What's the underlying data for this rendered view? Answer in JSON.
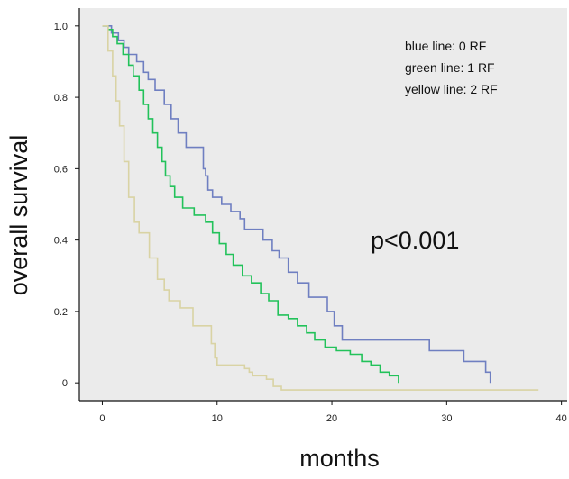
{
  "colors": {
    "plot_background": "#ebebeb",
    "axis": "#111111",
    "blue": "#6f7fc1",
    "green": "#22c25a",
    "yellow": "#d9d3a4"
  },
  "chart_data": {
    "type": "line",
    "step": true,
    "title": "",
    "xlabel": "months",
    "ylabel": "overall survival",
    "xlim": [
      -2,
      40.5
    ],
    "ylim": [
      -0.05,
      1.05
    ],
    "x_ticks": [
      0,
      10,
      20,
      30,
      40
    ],
    "y_ticks": [
      {
        "value": 0,
        "label": "0"
      },
      {
        "value": 0.2,
        "label": "0.2"
      },
      {
        "value": 0.4,
        "label": "0.4"
      },
      {
        "value": 0.6,
        "label": "0.6"
      },
      {
        "value": 0.8,
        "label": "0.8"
      },
      {
        "value": 1.0,
        "label": "1.0"
      }
    ],
    "grid": false,
    "legend_placement": "top-right",
    "legend_entries": [
      "blue line: 0 RF",
      "green line: 1 RF",
      "yellow line: 2 RF"
    ],
    "annotations": [
      "p<0.001"
    ],
    "series": [
      {
        "color": "blue",
        "x": [
          0,
          0.8,
          1.4,
          1.9,
          2.3,
          3.0,
          3.6,
          4.0,
          4.6,
          5.4,
          6.0,
          6.6,
          7.3,
          8.8,
          9.0,
          9.2,
          9.6,
          10.4,
          11.2,
          12.0,
          12.4,
          14.0,
          14.8,
          15.4,
          16.2,
          17.0,
          18.0,
          19.6,
          20.2,
          20.9,
          28.5,
          30.0,
          31.5,
          33.4,
          33.8
        ],
        "y": [
          1.0,
          0.98,
          0.96,
          0.94,
          0.92,
          0.9,
          0.87,
          0.85,
          0.82,
          0.78,
          0.74,
          0.7,
          0.66,
          0.6,
          0.58,
          0.54,
          0.52,
          0.5,
          0.48,
          0.46,
          0.43,
          0.4,
          0.37,
          0.35,
          0.31,
          0.28,
          0.24,
          0.2,
          0.16,
          0.12,
          0.09,
          0.09,
          0.06,
          0.03,
          0.0
        ]
      },
      {
        "color": "green",
        "x": [
          0,
          0.5,
          0.9,
          1.3,
          1.8,
          2.3,
          2.7,
          3.2,
          3.6,
          4.0,
          4.4,
          4.8,
          5.2,
          5.5,
          5.9,
          6.3,
          7.0,
          8.0,
          9.0,
          9.6,
          10.2,
          10.8,
          11.4,
          12.2,
          13.0,
          13.8,
          14.5,
          15.3,
          16.2,
          17.0,
          17.8,
          18.5,
          19.4,
          20.4,
          21.6,
          22.6,
          23.4,
          24.2,
          25.0,
          25.8
        ],
        "y": [
          1.0,
          0.99,
          0.97,
          0.95,
          0.92,
          0.89,
          0.86,
          0.82,
          0.78,
          0.74,
          0.7,
          0.66,
          0.62,
          0.58,
          0.55,
          0.52,
          0.49,
          0.47,
          0.45,
          0.42,
          0.39,
          0.36,
          0.33,
          0.3,
          0.28,
          0.25,
          0.23,
          0.19,
          0.18,
          0.16,
          0.14,
          0.12,
          0.1,
          0.09,
          0.08,
          0.06,
          0.05,
          0.03,
          0.02,
          0.0
        ]
      },
      {
        "color": "yellow",
        "x": [
          0,
          0.5,
          0.9,
          1.2,
          1.5,
          1.9,
          2.3,
          2.8,
          3.2,
          4.1,
          4.8,
          5.4,
          5.8,
          6.8,
          7.9,
          9.5,
          9.8,
          10.0,
          12.4,
          12.8,
          13.1,
          14.3,
          14.9,
          15.6,
          38.0
        ],
        "y": [
          1.0,
          0.93,
          0.86,
          0.79,
          0.72,
          0.62,
          0.52,
          0.45,
          0.42,
          0.35,
          0.29,
          0.26,
          0.23,
          0.21,
          0.16,
          0.11,
          0.07,
          0.05,
          0.04,
          0.03,
          0.02,
          0.01,
          -0.01,
          -0.02,
          -0.02
        ]
      }
    ]
  }
}
